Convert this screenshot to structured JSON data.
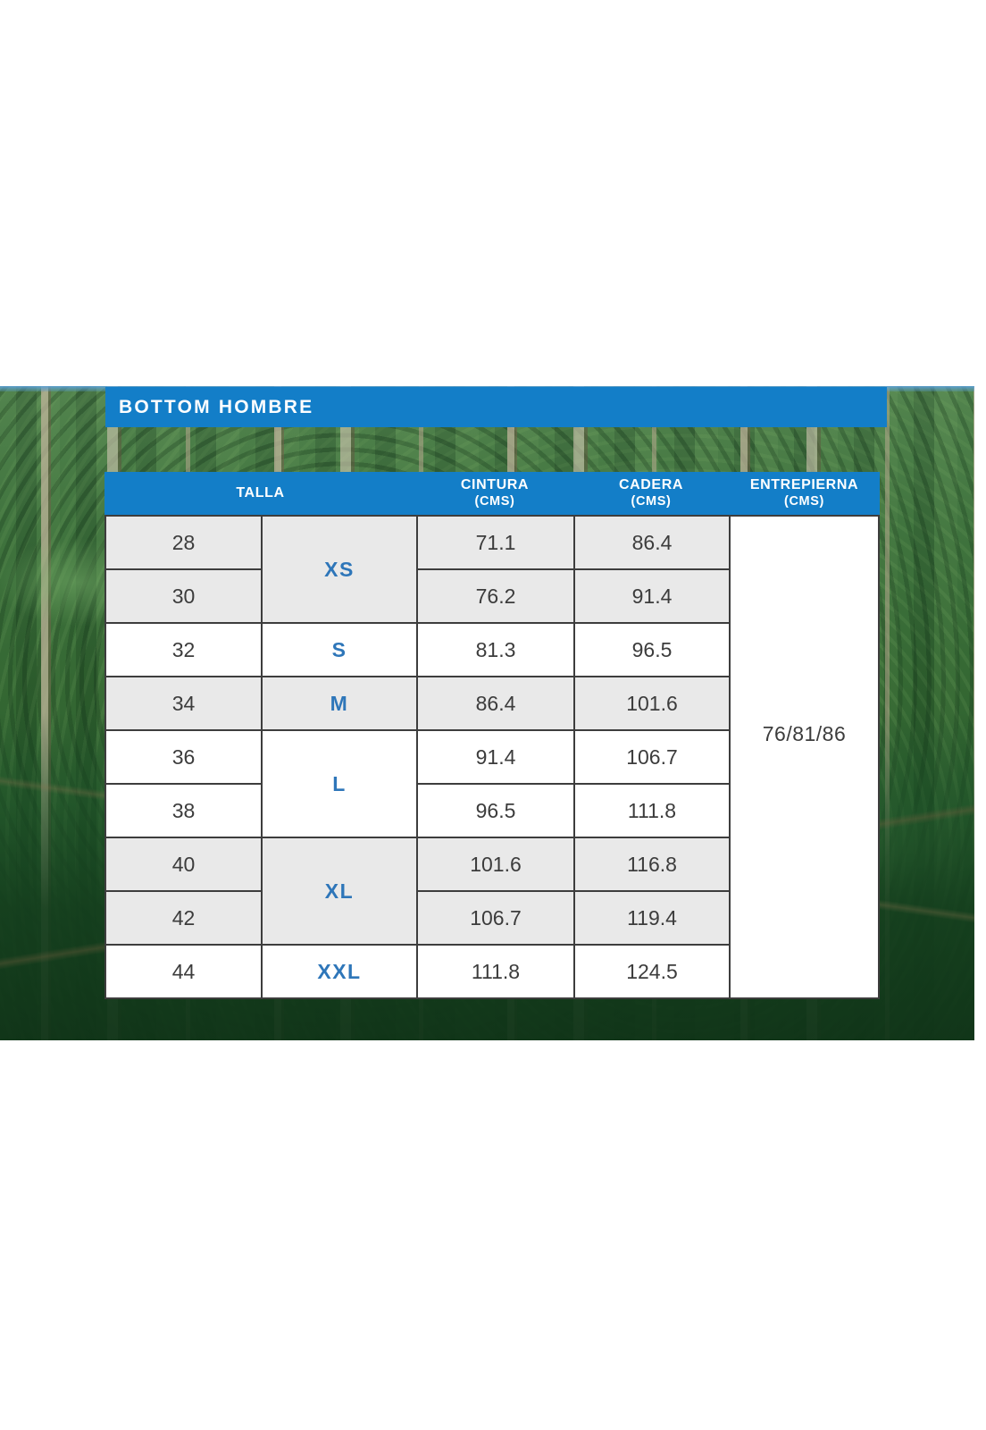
{
  "title_bar": {
    "label": "BOTTOM HOMBRE"
  },
  "table": {
    "headers": [
      {
        "label": "TALLA",
        "sub": ""
      },
      {
        "label": "CINTURA",
        "sub": "(CMS)"
      },
      {
        "label": "CADERA",
        "sub": "(CMS)"
      },
      {
        "label": "ENTREPIERNA",
        "sub": "(CMS)"
      }
    ],
    "size_groups": [
      {
        "label": "XS",
        "shaded": true,
        "rows": [
          {
            "talla": "28",
            "cintura": "71.1",
            "cadera": "86.4"
          },
          {
            "talla": "30",
            "cintura": "76.2",
            "cadera": "91.4"
          }
        ]
      },
      {
        "label": "S",
        "shaded": false,
        "rows": [
          {
            "talla": "32",
            "cintura": "81.3",
            "cadera": "96.5"
          }
        ]
      },
      {
        "label": "M",
        "shaded": true,
        "rows": [
          {
            "talla": "34",
            "cintura": "86.4",
            "cadera": "101.6"
          }
        ]
      },
      {
        "label": "L",
        "shaded": false,
        "rows": [
          {
            "talla": "36",
            "cintura": "91.4",
            "cadera": "106.7"
          },
          {
            "talla": "38",
            "cintura": "96.5",
            "cadera": "111.8"
          }
        ]
      },
      {
        "label": "XL",
        "shaded": true,
        "rows": [
          {
            "talla": "40",
            "cintura": "101.6",
            "cadera": "116.8"
          },
          {
            "talla": "42",
            "cintura": "106.7",
            "cadera": "119.4"
          }
        ]
      },
      {
        "label": "XXL",
        "shaded": false,
        "rows": [
          {
            "talla": "44",
            "cintura": "111.8",
            "cadera": "124.5"
          }
        ]
      }
    ],
    "entrepierna": "76/81/86"
  },
  "colors": {
    "primary_blue": "#137EC8",
    "size_label_blue": "#2E76B9",
    "row_shaded": "#E9E9E9",
    "table_border": "#3D3D3D",
    "body_text": "#3C3C3C"
  }
}
